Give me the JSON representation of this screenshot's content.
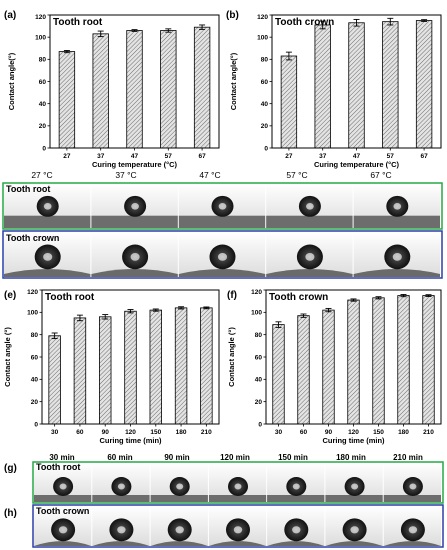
{
  "chart_data": [
    {
      "type": "bar",
      "panel_label": "(a)",
      "title": "Tooth root",
      "categories": [
        "27",
        "37",
        "47",
        "57",
        "67"
      ],
      "values": [
        87,
        103,
        106,
        106,
        109
      ],
      "errors": [
        1,
        2.5,
        0.8,
        1.5,
        2
      ],
      "ylabel": "Contact angle(°)",
      "xlabel": "Curing temperature (°C)",
      "ylim": [
        0,
        120
      ],
      "yticks": [
        "0",
        "20",
        "40",
        "60",
        "80",
        "100",
        "120"
      ]
    },
    {
      "type": "bar",
      "panel_label": "(b)",
      "title": "Tooth crown",
      "categories": [
        "27",
        "37",
        "47",
        "57",
        "67"
      ],
      "values": [
        83,
        111,
        113,
        114,
        115
      ],
      "errors": [
        3.5,
        3.5,
        3,
        3,
        0.8
      ],
      "ylabel": "Contact angle(°)",
      "xlabel": "Curing temperature (°C)",
      "ylim": [
        0,
        120
      ],
      "yticks": [
        "0",
        "20",
        "40",
        "60",
        "80",
        "100",
        "120"
      ]
    },
    {
      "type": "bar",
      "panel_label": "(e)",
      "title": "Tooth root",
      "categories": [
        "30",
        "60",
        "90",
        "120",
        "150",
        "180",
        "210"
      ],
      "values": [
        79,
        95,
        96,
        101,
        102,
        104,
        104
      ],
      "errors": [
        2.5,
        2.5,
        2,
        1.5,
        1,
        1,
        0.8
      ],
      "ylabel": "Contact angle (°)",
      "xlabel": "Curing time (min)",
      "ylim": [
        0,
        120
      ],
      "yticks": [
        "0",
        "20",
        "40",
        "60",
        "80",
        "100",
        "120"
      ]
    },
    {
      "type": "bar",
      "panel_label": "(f)",
      "title": "Tooth crown",
      "categories": [
        "30",
        "60",
        "90",
        "120",
        "150",
        "180",
        "210"
      ],
      "values": [
        89,
        97,
        102,
        111,
        113,
        115,
        115
      ],
      "errors": [
        2.5,
        1.5,
        1.5,
        1,
        1,
        1,
        0.8
      ],
      "ylabel": "Contact angle (°)",
      "xlabel": "Curing time (min)",
      "ylim": [
        0,
        120
      ],
      "yticks": [
        "0",
        "20",
        "40",
        "60",
        "80",
        "100",
        "120"
      ]
    }
  ],
  "photo_strips": {
    "temperature_headers": [
      "27 °C",
      "37 °C",
      "47 °C",
      "57 °C",
      "67 °C"
    ],
    "time_headers": [
      "30 min",
      "60 min",
      "90 min",
      "120 min",
      "150 min",
      "180 min",
      "210 min"
    ],
    "row_c_label": "Tooth root",
    "row_d_label": "Tooth crown",
    "row_g_panel": "(g)",
    "row_g_label": "Tooth root",
    "row_h_panel": "(h)",
    "row_h_label": "Tooth crown",
    "root_border_color": "#27a844",
    "crown_border_color": "#2c3fa8"
  }
}
